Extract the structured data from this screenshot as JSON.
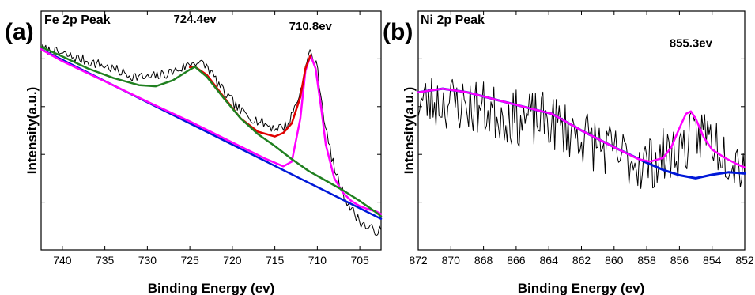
{
  "chart_data": [
    {
      "type": "line",
      "panel_label": "(a)",
      "title": "Fe 2p Peak",
      "xlabel": "Binding Energy (ev)",
      "ylabel": "Intensity(a.u.)",
      "xlim": [
        742.5,
        702.5
      ],
      "x_reversed": true,
      "ylim": [
        0,
        100
      ],
      "x_ticks": [
        740,
        735,
        730,
        725,
        720,
        715,
        710,
        705
      ],
      "y_ticks": [
        0,
        20,
        40,
        60,
        80,
        100
      ],
      "annotations": [
        {
          "text": "724.4ev",
          "x": 724.4,
          "y": 95
        },
        {
          "text": "710.8ev",
          "x": 710.8,
          "y": 92
        }
      ],
      "series": [
        {
          "color": "#000000",
          "width": 1,
          "noise": 2.2,
          "seed": 7,
          "x": [
            742.5,
            740,
            738,
            735,
            732,
            730,
            728,
            726,
            724.4,
            723,
            721,
            719,
            717,
            715,
            713.5,
            712,
            711,
            710.8,
            710,
            709,
            708,
            707,
            706,
            705,
            704,
            703,
            702.5
          ],
          "y": [
            84.3,
            82,
            80,
            77,
            73,
            72,
            73.5,
            76,
            79,
            77,
            66,
            58,
            54,
            51,
            52,
            66,
            82,
            83,
            76,
            50,
            34,
            24,
            17,
            12,
            9,
            8,
            8
          ]
        },
        {
          "color": "#0018d8",
          "width": 2.5,
          "x": [
            742.5,
            702.5
          ],
          "y": [
            84,
            13
          ]
        },
        {
          "color": "#ff00ff",
          "width": 2.5,
          "x": [
            742.5,
            740,
            735,
            730,
            725,
            720,
            716,
            714,
            713,
            712,
            711.4,
            710.8,
            710.2,
            709.5,
            709,
            708,
            707,
            706,
            705,
            704,
            703,
            702.5
          ],
          "y": [
            84,
            79,
            70.6,
            62.1,
            53.8,
            45,
            38,
            35,
            37,
            55,
            75,
            81.5,
            76,
            58,
            44,
            30,
            24,
            20.5,
            18.3,
            17,
            16,
            15
          ]
        },
        {
          "color": "#e00000",
          "width": 2.5,
          "x": [
            725,
            724.4,
            723,
            721,
            719,
            717,
            715,
            714,
            713,
            712,
            711.4,
            710.8
          ],
          "y": [
            76.5,
            76.7,
            73.3,
            64,
            55,
            49.5,
            47.5,
            49,
            53,
            64,
            76,
            81.5
          ]
        },
        {
          "color": "#208020",
          "width": 2.5,
          "x": [
            742.5,
            740,
            737,
            734,
            731,
            729,
            727,
            725,
            724.4,
            723,
            721,
            719,
            717,
            715,
            713,
            711,
            709,
            707,
            705,
            703,
            702.5
          ],
          "y": [
            85,
            81,
            76,
            72,
            69,
            68.5,
            71,
            75.5,
            76.7,
            72.5,
            63.5,
            55,
            48.5,
            43.5,
            38,
            33,
            29,
            25,
            20.5,
            15.5,
            14
          ]
        }
      ]
    },
    {
      "type": "line",
      "panel_label": "(b)",
      "title": "Ni 2p Peak",
      "xlabel": "Binding Energy (ev)",
      "ylabel": "Intensity(a.u.)",
      "xlim": [
        872,
        852
      ],
      "x_reversed": true,
      "ylim": [
        0,
        100
      ],
      "x_ticks": [
        872,
        870,
        868,
        866,
        864,
        862,
        860,
        858,
        856,
        854,
        852
      ],
      "y_ticks": [
        0,
        20,
        40,
        60,
        80,
        100
      ],
      "annotations": [
        {
          "text": "855.3ev",
          "x": 855.3,
          "y": 85
        }
      ],
      "series": [
        {
          "color": "#000000",
          "width": 1,
          "noise": 12,
          "seed": 23,
          "x": [
            872,
            870,
            868,
            866,
            864,
            862,
            860,
            858,
            856,
            854.5,
            853,
            852
          ],
          "y": [
            62,
            62,
            59,
            55,
            54,
            48,
            40,
            36,
            42,
            50,
            40,
            36
          ]
        },
        {
          "color": "#0018d8",
          "width": 3,
          "x": [
            872,
            870.5,
            869,
            867,
            865,
            863.8,
            862,
            860,
            858,
            857,
            856,
            855,
            854,
            853,
            852.5,
            852
          ],
          "y": [
            66,
            67.5,
            66,
            62.5,
            59,
            57,
            50,
            43,
            36.5,
            33.5,
            31.3,
            30,
            31.5,
            32.5,
            32.3,
            32
          ]
        },
        {
          "color": "#ff00ff",
          "width": 2.5,
          "x": [
            872,
            870.5,
            869,
            867,
            865,
            863.8,
            862,
            860,
            858.5,
            857.8,
            857,
            856.5,
            856,
            855.6,
            855.3,
            855,
            854.5,
            854,
            853.2,
            852.5,
            852
          ],
          "y": [
            66,
            67.5,
            66,
            62.5,
            59,
            57,
            50,
            43,
            38,
            37,
            38.5,
            43,
            51,
            57,
            58,
            55,
            47,
            42,
            38.5,
            36,
            34.5
          ]
        }
      ]
    }
  ]
}
